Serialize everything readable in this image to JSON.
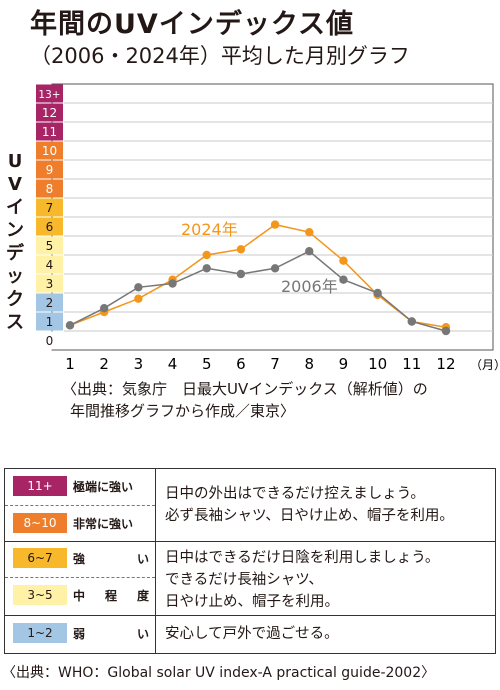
{
  "header": {
    "title": "年間のUVインデックス値",
    "subtitle": "（2006・2024年）平均した月別グラフ"
  },
  "chart_data": {
    "type": "line",
    "ylabel": "UVインデックス",
    "xlabel": "",
    "x_ticks": [
      "1",
      "2",
      "3",
      "4",
      "5",
      "6",
      "7",
      "8",
      "9",
      "10",
      "11",
      "12"
    ],
    "x_unit": "（月）",
    "y_ticks": [
      "0",
      "1",
      "2",
      "3",
      "4",
      "5",
      "6",
      "7",
      "8",
      "9",
      "10",
      "11",
      "12",
      "13+"
    ],
    "ylim": [
      0,
      14
    ],
    "y_band_colors": [
      "#ffffff",
      "#a3c6e5",
      "#a3c6e5",
      "#fff2a6",
      "#fff2a6",
      "#fff2a6",
      "#f7b92b",
      "#f7b92b",
      "#ef7e2c",
      "#ef7e2c",
      "#ef7e2c",
      "#a72465",
      "#a72465",
      "#a72465"
    ],
    "grid": true,
    "series": [
      {
        "name": "2024年",
        "color": "#f3961c",
        "values": [
          1.3,
          2.0,
          2.7,
          3.7,
          5.0,
          5.3,
          6.6,
          6.2,
          4.7,
          2.9,
          1.5,
          1.2
        ]
      },
      {
        "name": "2006年",
        "color": "#777777",
        "values": [
          1.3,
          2.2,
          3.3,
          3.5,
          4.3,
          4.0,
          4.3,
          5.2,
          3.7,
          3.0,
          1.5,
          1.0
        ]
      }
    ]
  },
  "source1": {
    "line1": "〈出典：気象庁　日最大UVインデックス（解析値）の",
    "line2": "年間推移グラフから作成／東京〉"
  },
  "legend": {
    "rows": [
      {
        "swatch": "11+",
        "name": "極端に強い",
        "color": "#a72465",
        "text_color": "#ffffff"
      },
      {
        "swatch": "8~10",
        "name": "非常に強い",
        "color": "#ef7e2c",
        "text_color": "#ffffff"
      },
      {
        "swatch": "6~7",
        "name": [
          "強",
          "い"
        ],
        "color": "#f7b92b",
        "text_color": "#231815"
      },
      {
        "swatch": "3~5",
        "name": [
          "中",
          "程",
          "度"
        ],
        "color": "#fff2a6",
        "text_color": "#231815"
      },
      {
        "swatch": "1~2",
        "name": [
          "弱",
          "い"
        ],
        "color": "#a3c6e5",
        "text_color": "#231815"
      }
    ],
    "advice": [
      [
        "日中の外出はできるだけ控えましょう。",
        "必ず長袖シャツ、日やけ止め、帽子を利用。"
      ],
      [
        "日中はできるだけ日陰を利用しましょう。",
        "できるだけ長袖シャツ、",
        "日やけ止め、帽子を利用。"
      ],
      [
        "安心して戸外で過ごせる。"
      ]
    ]
  },
  "source2": "〈出典：WHO：Global solar UV index-A practical guide-2002〉"
}
